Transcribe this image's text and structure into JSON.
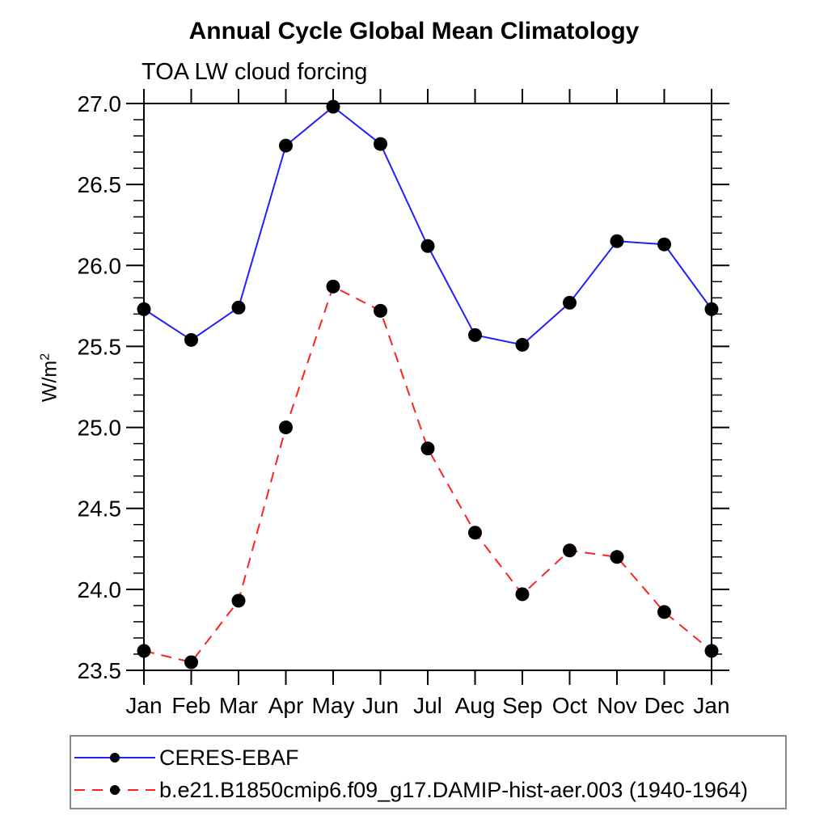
{
  "title": "Annual Cycle Global Mean Climatology",
  "subtitle": "TOA LW cloud forcing",
  "y_axis": {
    "label_base": "W/m",
    "label_exponent": "2"
  },
  "legend": {
    "items": [
      {
        "label": "CERES-EBAF",
        "color": "#2020ff",
        "line_style": "solid"
      },
      {
        "label": "b.e21.B1850cmip6.f09_g17.DAMIP-hist-aer.003 (1940-1964)",
        "color": "#ff2020",
        "line_style": "dashed"
      }
    ]
  },
  "chart_data": {
    "type": "line",
    "title": "Annual Cycle Global Mean Climatology",
    "subtitle": "TOA LW cloud forcing",
    "xlabel": "",
    "ylabel": "W/m^2",
    "categories": [
      "Jan",
      "Feb",
      "Mar",
      "Apr",
      "May",
      "Jun",
      "Jul",
      "Aug",
      "Sep",
      "Oct",
      "Nov",
      "Dec",
      "Jan"
    ],
    "series": [
      {
        "name": "CERES-EBAF",
        "color": "#2020ff",
        "line_style": "solid",
        "marker": "filled-circle",
        "marker_color": "#000000",
        "values": [
          25.73,
          25.54,
          25.74,
          26.74,
          26.98,
          26.75,
          26.12,
          25.57,
          25.51,
          25.77,
          26.15,
          26.13,
          25.73
        ]
      },
      {
        "name": "b.e21.B1850cmip6.f09_g17.DAMIP-hist-aer.003 (1940-1964)",
        "color": "#ff2020",
        "line_style": "dashed",
        "marker": "filled-circle",
        "marker_color": "#000000",
        "values": [
          23.62,
          23.55,
          23.93,
          25.0,
          25.87,
          25.72,
          24.87,
          24.35,
          23.97,
          24.24,
          24.2,
          23.86,
          23.62
        ]
      }
    ],
    "ylim": [
      23.5,
      27.0
    ],
    "ytick_labels": [
      "23.5",
      "24.0",
      "24.5",
      "25.0",
      "25.5",
      "26.0",
      "26.5",
      "27.0"
    ],
    "ytick_major_step": 0.5,
    "ytick_minor_step": 0.1,
    "grid": false,
    "legend_position": "bottom"
  }
}
